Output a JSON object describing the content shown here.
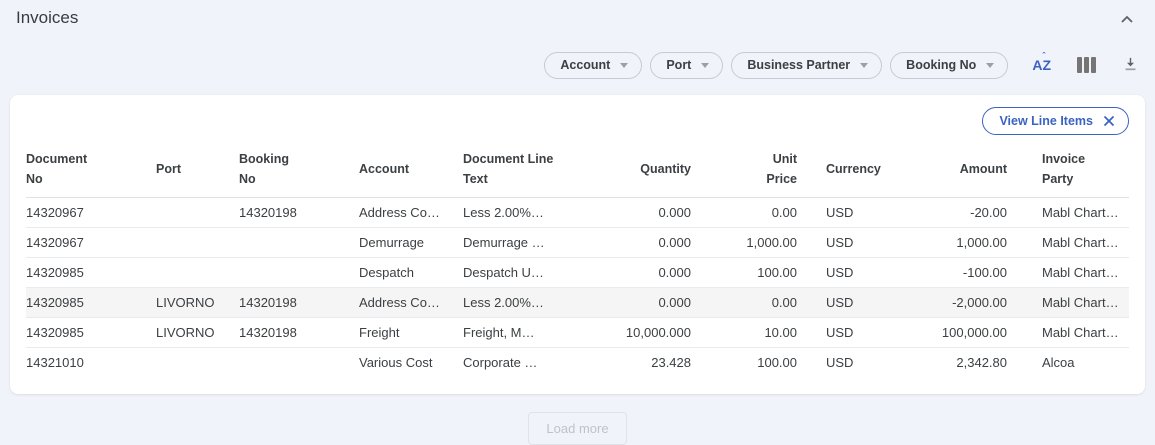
{
  "page": {
    "title": "Invoices"
  },
  "icons": {
    "collapse": "chevron-up",
    "sort": "sort-alphabetical-az",
    "columns": "column-visibility",
    "download": "download",
    "filter_caret": "caret-down",
    "chip_close": "x"
  },
  "toolbar": {
    "filters": [
      {
        "label": "Account"
      },
      {
        "label": "Port"
      },
      {
        "label": "Business Partner"
      },
      {
        "label": "Booking No"
      }
    ],
    "sort_glyph": "AZ"
  },
  "card": {
    "chip": {
      "label": "View Line Items"
    },
    "table": {
      "columns": [
        {
          "label": "Document\nNo",
          "align": "left"
        },
        {
          "label": "Port",
          "align": "left"
        },
        {
          "label": "Booking\nNo",
          "align": "left"
        },
        {
          "label": "Account",
          "align": "left"
        },
        {
          "label": "Document Line\nText",
          "align": "left"
        },
        {
          "label": "Quantity",
          "align": "right"
        },
        {
          "label": "Unit\nPrice",
          "align": "right"
        },
        {
          "label": "Currency",
          "align": "left"
        },
        {
          "label": "Amount",
          "align": "right"
        },
        {
          "label": "Invoice\nParty",
          "align": "left"
        }
      ],
      "rows": [
        [
          "14320967",
          "",
          "14320198",
          "Address Co…",
          "Less 2.00%…",
          "0.000",
          "0.00",
          "USD",
          "-20.00",
          "Mabl Chart…"
        ],
        [
          "14320967",
          "",
          "",
          "Demurrage",
          "Demurrage …",
          "0.000",
          "1,000.00",
          "USD",
          "1,000.00",
          "Mabl Chart…"
        ],
        [
          "14320985",
          "",
          "",
          "Despatch",
          "Despatch U…",
          "0.000",
          "100.00",
          "USD",
          "-100.00",
          "Mabl Chart…"
        ],
        [
          "14320985",
          "LIVORNO",
          "14320198",
          "Address Co…",
          "Less 2.00%…",
          "0.000",
          "0.00",
          "USD",
          "-2,000.00",
          "Mabl Chart…"
        ],
        [
          "14320985",
          "LIVORNO",
          "14320198",
          "Freight",
          "Freight, M…",
          "10,000.000",
          "10.00",
          "USD",
          "100,000.00",
          "Mabl Chart…"
        ],
        [
          "14321010",
          "",
          "",
          "Various Cost",
          "Corporate …",
          "23.428",
          "100.00",
          "USD",
          "2,342.80",
          "Alcoa"
        ]
      ],
      "highlighted_row_index": 3
    }
  },
  "footer": {
    "load_more_label": "Load more"
  }
}
